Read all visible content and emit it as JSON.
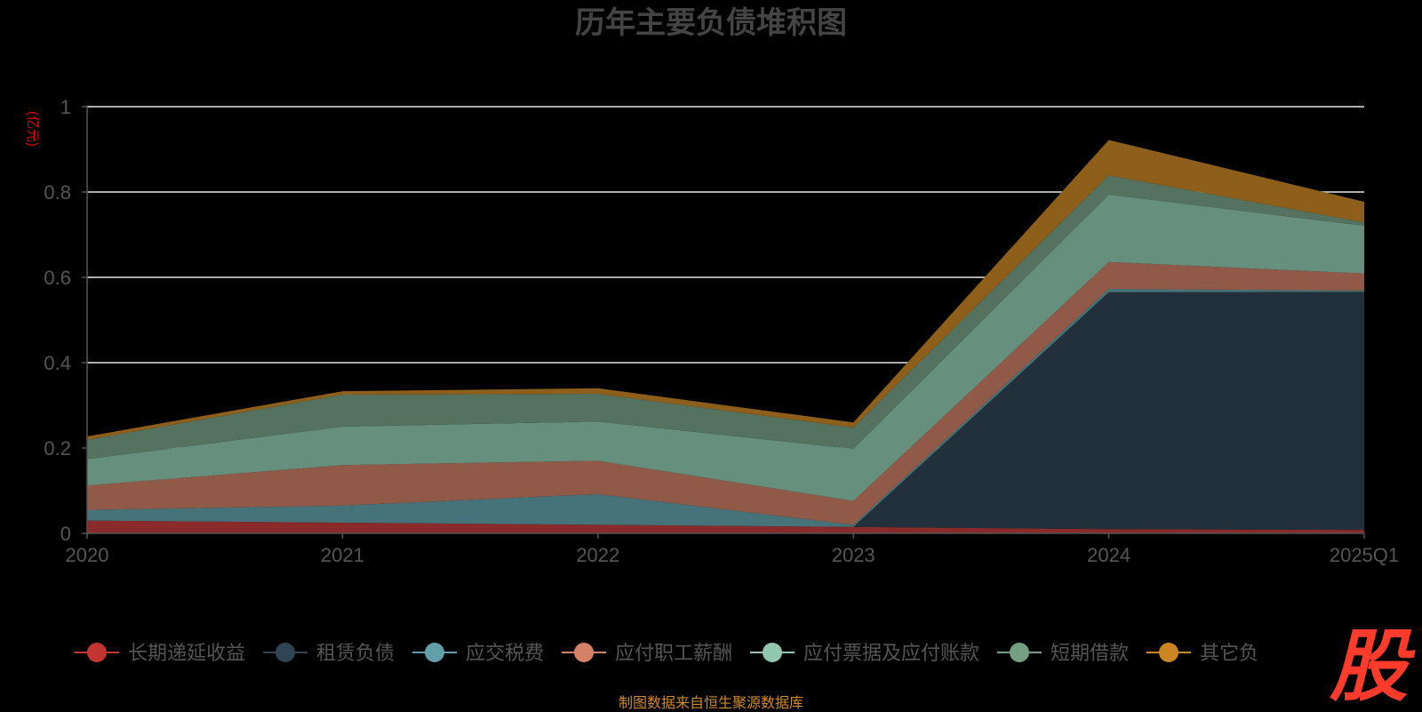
{
  "chart_data": {
    "type": "area",
    "stacked": true,
    "title": "历年主要负债堆积图",
    "unit_label": "(亿元)",
    "categories": [
      "2020",
      "2021",
      "2022",
      "2023",
      "2024",
      "2025Q1"
    ],
    "ylim": [
      0,
      1
    ],
    "y_ticks": [
      "0",
      "0.2",
      "0.4",
      "0.6",
      "0.8",
      "1"
    ],
    "grid": true,
    "legend_position": "bottom",
    "series": [
      {
        "name": "长期递延收益",
        "color": "#c23531",
        "fill": "#8b2a2a",
        "values": [
          0.03,
          0.025,
          0.02,
          0.015,
          0.01,
          0.008
        ]
      },
      {
        "name": "租赁负债",
        "color": "#2f4554",
        "fill": "#22303b",
        "values": [
          0.0,
          0.0,
          0.0,
          0.0,
          0.555,
          0.558
        ]
      },
      {
        "name": "应交税费",
        "color": "#61a0a8",
        "fill": "#46737a",
        "values": [
          0.025,
          0.04,
          0.072,
          0.005,
          0.008,
          0.003
        ]
      },
      {
        "name": "应付职工薪酬",
        "color": "#d48265",
        "fill": "#915a48",
        "values": [
          0.057,
          0.095,
          0.078,
          0.056,
          0.063,
          0.04
        ]
      },
      {
        "name": "应付票据及应付账款",
        "color": "#91c7ae",
        "fill": "#678f7e",
        "values": [
          0.062,
          0.09,
          0.092,
          0.122,
          0.158,
          0.112
        ]
      },
      {
        "name": "短期借款",
        "color": "#749f83",
        "fill": "#54725f",
        "values": [
          0.045,
          0.075,
          0.065,
          0.05,
          0.045,
          0.008
        ]
      },
      {
        "name": "其它负债",
        "color": "#ca8622",
        "fill": "#8e5f1a",
        "values": [
          0.008,
          0.008,
          0.013,
          0.012,
          0.083,
          0.048
        ]
      }
    ]
  },
  "legend_visible_labels": [
    "长期递延收益",
    "租赁负债",
    "应交税费",
    "应付职工薪酬",
    "应付票据及应付账款",
    "短期借款",
    "其它负"
  ],
  "source_note": "制图数据来自恒生聚源数据库",
  "watermark_text": "股"
}
